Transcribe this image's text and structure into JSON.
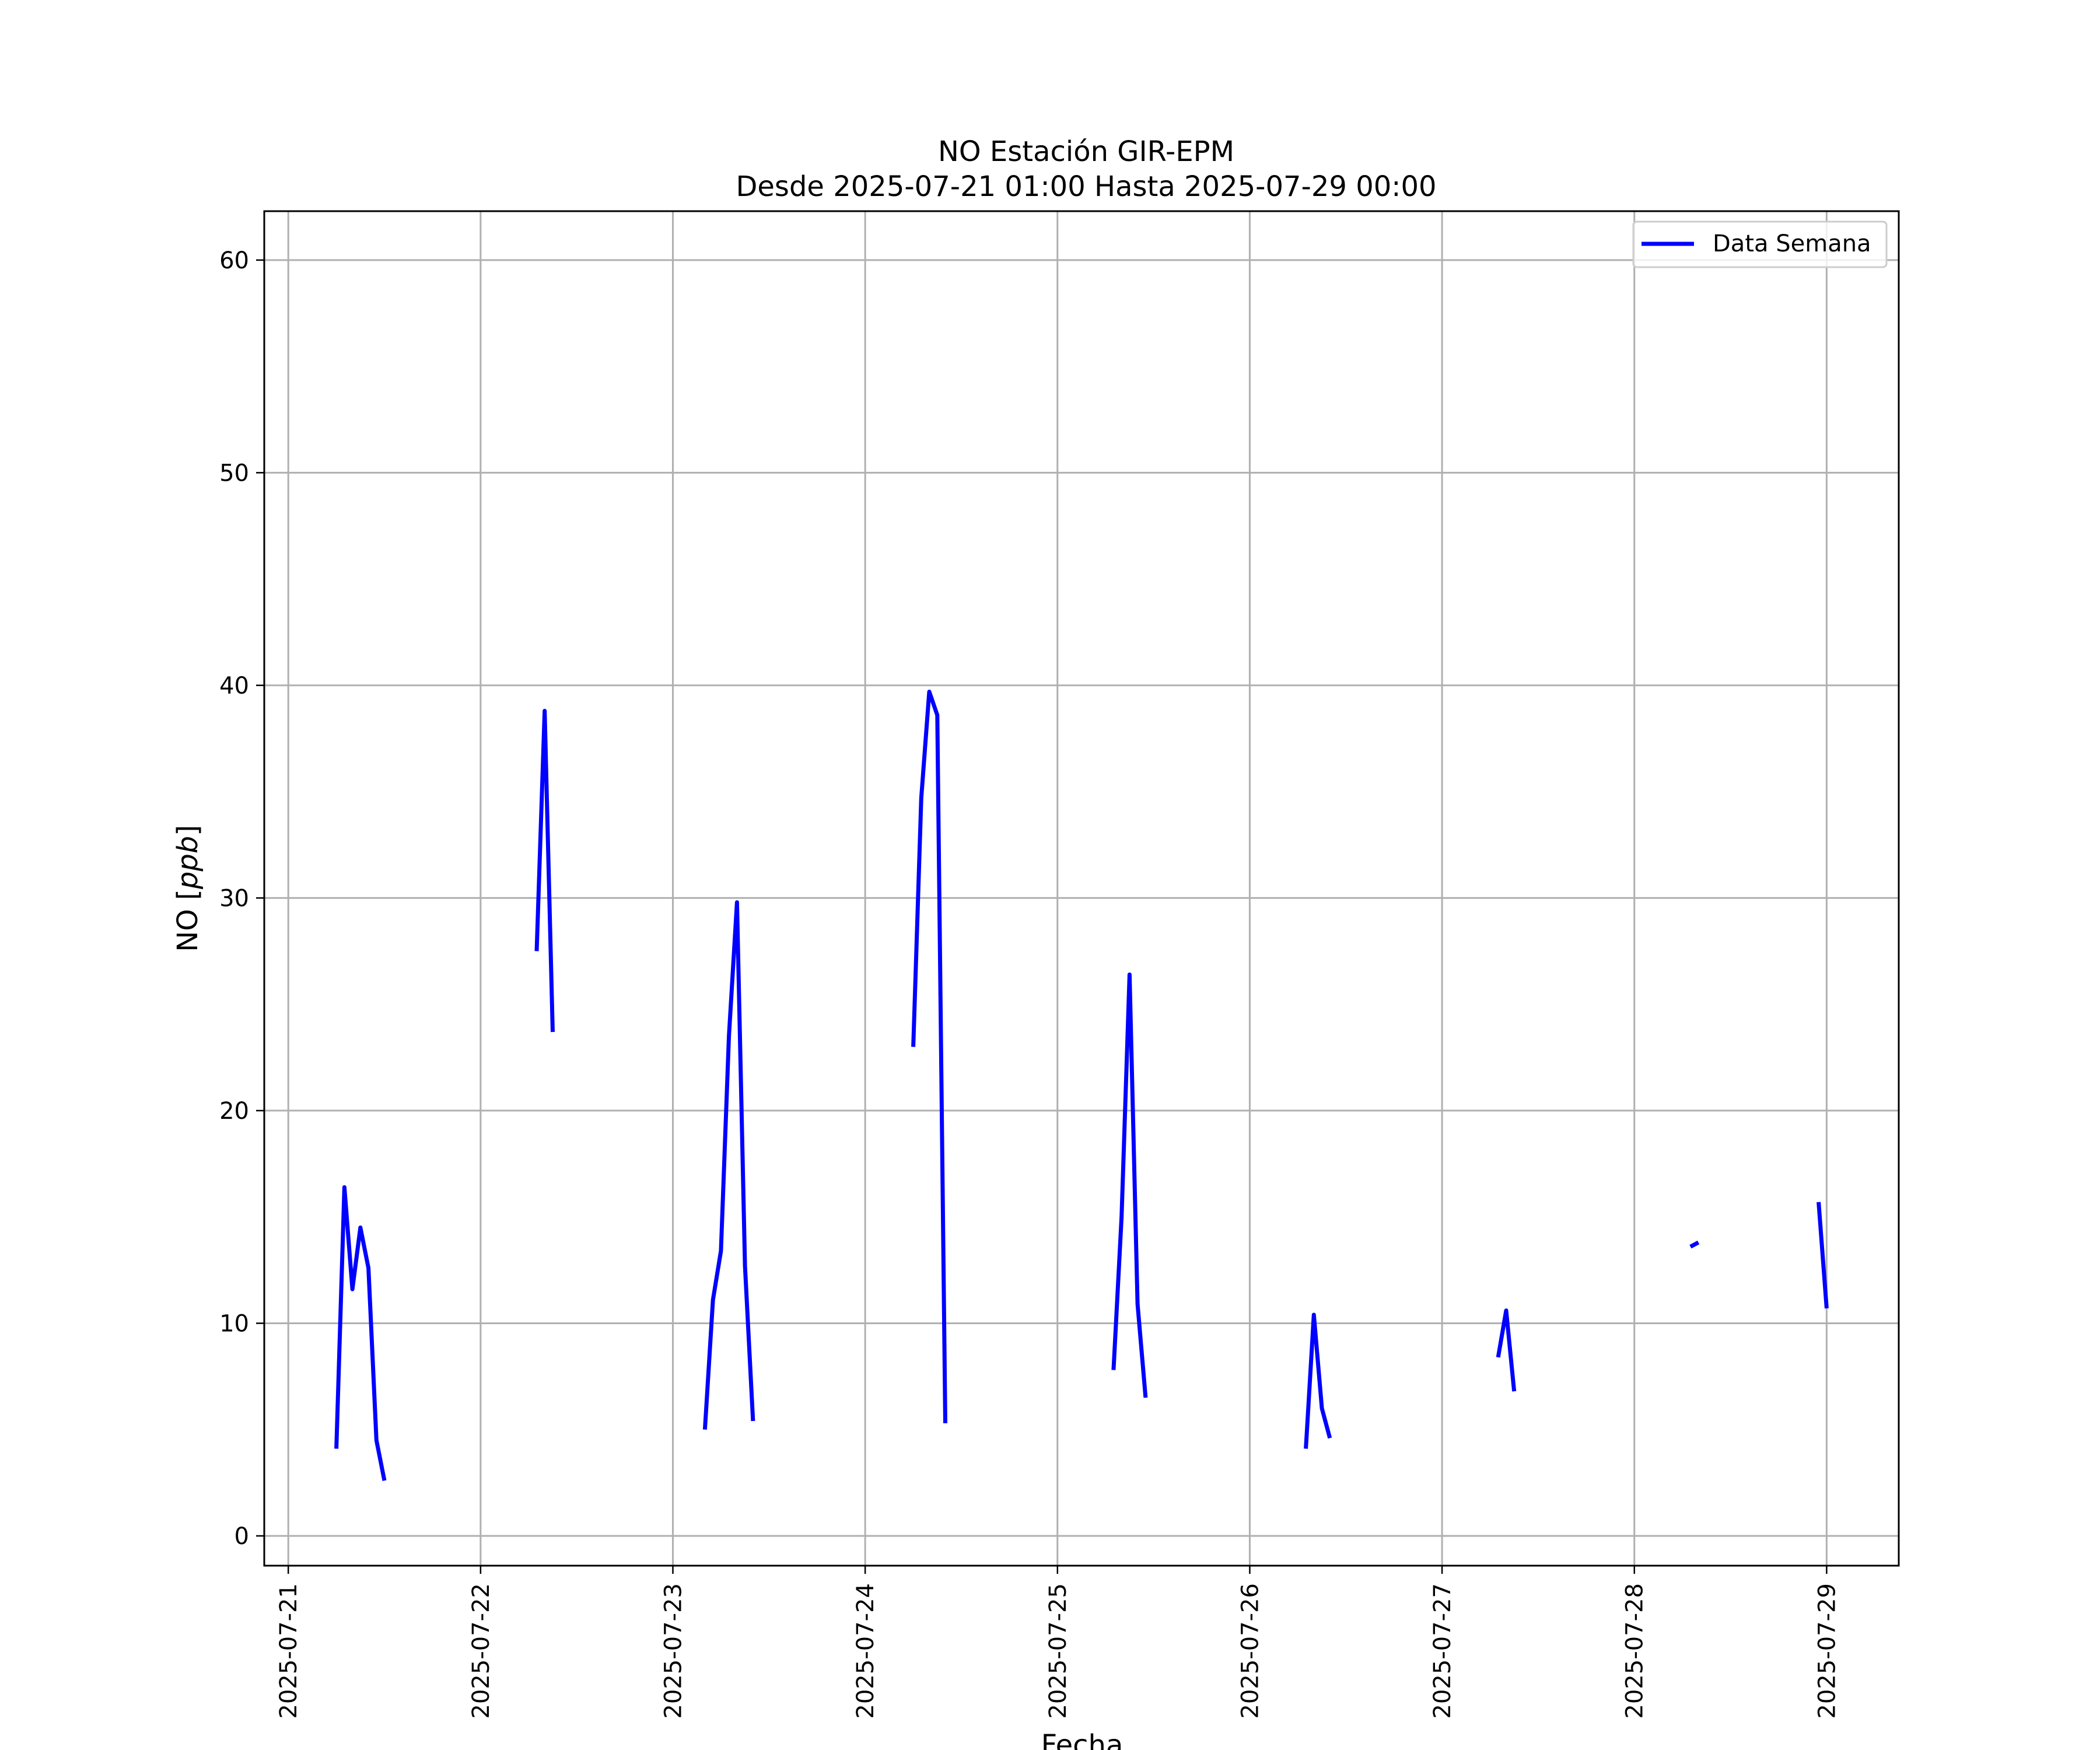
{
  "chart_data": {
    "type": "line",
    "title": [
      "NO Estación GIR-EPM",
      "Desde 2025-07-21 01:00 Hasta 2025-07-29 00:00"
    ],
    "xlabel": "Fecha",
    "ylabel_text": "NO [",
    "ylabel_unit": "ppb",
    "ylabel_close": "]",
    "xlim": [
      "2025-07-20 21:00",
      "2025-07-29 09:00"
    ],
    "ylim": [
      -1.4,
      62.3
    ],
    "x_ticks": [
      "2025-07-21",
      "2025-07-22",
      "2025-07-23",
      "2025-07-24",
      "2025-07-25",
      "2025-07-26",
      "2025-07-27",
      "2025-07-28",
      "2025-07-29"
    ],
    "y_ticks": [
      0,
      10,
      20,
      30,
      40,
      50,
      60
    ],
    "y_tick_labels": [
      "0",
      "10",
      "20",
      "30",
      "40",
      "50",
      "60"
    ],
    "grid": true,
    "legend_position": "top-right",
    "series": [
      {
        "name": "Data Semana",
        "color": "#0000ff",
        "segments": [
          [
            [
              "2025-07-21 06:00",
              4.1
            ],
            [
              "2025-07-21 07:00",
              16.4
            ],
            [
              "2025-07-21 08:00",
              11.6
            ],
            [
              "2025-07-21 09:00",
              14.5
            ],
            [
              "2025-07-21 10:00",
              12.6
            ],
            [
              "2025-07-21 11:00",
              4.5
            ],
            [
              "2025-07-21 12:00",
              2.6
            ]
          ],
          [
            [
              "2025-07-22 07:00",
              27.5
            ],
            [
              "2025-07-22 08:00",
              38.8
            ],
            [
              "2025-07-22 09:00",
              23.7
            ]
          ],
          [
            [
              "2025-07-23 04:00",
              5.0
            ],
            [
              "2025-07-23 05:00",
              11.1
            ],
            [
              "2025-07-23 06:00",
              13.4
            ],
            [
              "2025-07-23 07:00",
              23.5
            ],
            [
              "2025-07-23 08:00",
              29.8
            ],
            [
              "2025-07-23 09:00",
              12.7
            ],
            [
              "2025-07-23 10:00",
              5.4
            ]
          ],
          [
            [
              "2025-07-24 06:00",
              23.0
            ],
            [
              "2025-07-24 07:00",
              34.7
            ],
            [
              "2025-07-24 08:00",
              39.7
            ],
            [
              "2025-07-24 09:00",
              38.6
            ],
            [
              "2025-07-24 10:00",
              5.3
            ]
          ],
          [
            [
              "2025-07-25 07:00",
              7.8
            ],
            [
              "2025-07-25 08:00",
              15.0
            ],
            [
              "2025-07-25 09:00",
              26.4
            ],
            [
              "2025-07-25 10:00",
              10.9
            ],
            [
              "2025-07-25 11:00",
              6.5
            ]
          ],
          [
            [
              "2025-07-26 07:00",
              4.1
            ],
            [
              "2025-07-26 08:00",
              10.4
            ],
            [
              "2025-07-26 09:00",
              6.0
            ],
            [
              "2025-07-26 10:00",
              4.6
            ]
          ],
          [
            [
              "2025-07-27 07:00",
              8.4
            ],
            [
              "2025-07-27 08:00",
              10.6
            ],
            [
              "2025-07-27 09:00",
              6.8
            ]
          ],
          [
            [
              "2025-07-28 07:00",
              13.6
            ],
            [
              "2025-07-28 08:00",
              13.8
            ]
          ],
          [
            [
              "2025-07-28 23:00",
              15.7
            ],
            [
              "2025-07-29 00:00",
              10.7
            ]
          ]
        ]
      }
    ]
  }
}
